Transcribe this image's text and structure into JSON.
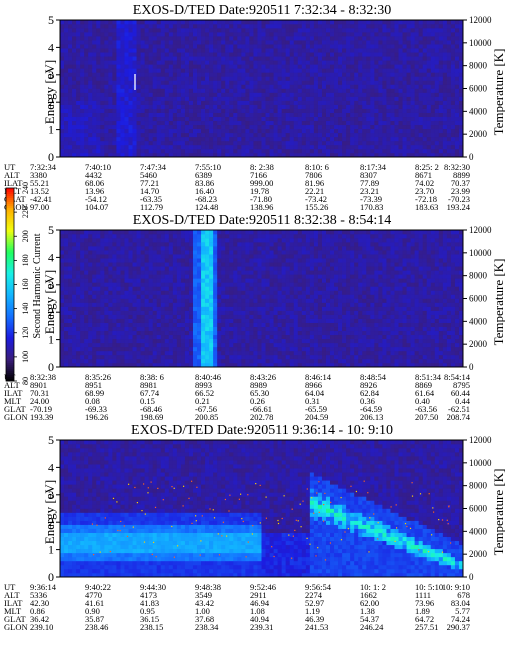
{
  "panels": [
    {
      "title": "EXOS-D/TED   Date:920511  7:32:34 - 8:32:30",
      "ylabel_left": "Energy [eV]",
      "ylabel_right": "Temperature [K]",
      "pattern": "quiet",
      "info_labels": [
        "UT",
        "ALT",
        "ILAT",
        "MLT",
        "GLAT",
        "GLON"
      ],
      "info_columns": [
        [
          "7:32:34",
          "3380",
          "55.21",
          "13.52",
          "-42.41",
          "97.00"
        ],
        [
          "7:40:10",
          "4432",
          "68.06",
          "13.96",
          "-54.12",
          "104.07"
        ],
        [
          "7:47:34",
          "5460",
          "77.21",
          "14.70",
          "-63.35",
          "112.79"
        ],
        [
          "7:55:10",
          "6389",
          "83.86",
          "16.40",
          "-68.23",
          "124.48"
        ],
        [
          "8: 2:38",
          "7166",
          "999.00",
          "19.78",
          "-71.80",
          "138.96"
        ],
        [
          "8:10: 6",
          "7806",
          "81.96",
          "22.21",
          "-73.42",
          "155.26"
        ],
        [
          "8:17:34",
          "8307",
          "77.89",
          "23.21",
          "-73.39",
          "170.83"
        ],
        [
          "8:25: 2",
          "8671",
          "74.02",
          "23.70",
          "-72.18",
          "183.63"
        ],
        [
          "8:32:30",
          "8899",
          "70.37",
          "23.99",
          "-70.23",
          "193.24"
        ]
      ]
    },
    {
      "title": "EXOS-D/TED   Date:920511  8:32:38 - 8:54:14",
      "ylabel_left": "Energy [eV]",
      "ylabel_right": "Temperature [K]",
      "pattern": "spike",
      "info_labels": [
        "UT",
        "ALT",
        "ILAT",
        "MLT",
        "GLAT",
        "GLON"
      ],
      "info_columns": [
        [
          "8:32:38",
          "8901",
          "70.31",
          "24.00",
          "-70.19",
          "193.39"
        ],
        [
          "8:35:26",
          "8951",
          "68.99",
          "0.08",
          "-69.33",
          "196.26"
        ],
        [
          "8:38: 6",
          "8981",
          "67.74",
          "0.15",
          "-68.46",
          "198.69"
        ],
        [
          "8:40:46",
          "8993",
          "66.52",
          "0.21",
          "-67.56",
          "200.85"
        ],
        [
          "8:43:26",
          "8989",
          "65.30",
          "0.26",
          "-66.61",
          "202.78"
        ],
        [
          "8:46:14",
          "8966",
          "64.04",
          "0.31",
          "-65.59",
          "204.59"
        ],
        [
          "8:48:54",
          "8926",
          "62.84",
          "0.36",
          "-64.59",
          "206.13"
        ],
        [
          "8:51:34",
          "8869",
          "61.64",
          "0.40",
          "-63.56",
          "207.50"
        ],
        [
          "8:54:14",
          "8795",
          "60.44",
          "0.44",
          "-62.51",
          "208.74"
        ]
      ]
    },
    {
      "title": "EXOS-D/TED   Date:920511  9:36:14 - 10: 9:10",
      "ylabel_left": "Energy [eV]",
      "ylabel_right": "Temperature [K]",
      "pattern": "active",
      "info_labels": [
        "UT",
        "ALT",
        "ILAT",
        "MLT",
        "GLAT",
        "GLON"
      ],
      "info_columns": [
        [
          "9:36:14",
          "5336",
          "42.30",
          "0.86",
          "36.42",
          "239.10"
        ],
        [
          "9:40:22",
          "4770",
          "41.61",
          "0.90",
          "35.87",
          "238.46"
        ],
        [
          "9:44:30",
          "4173",
          "41.83",
          "0.95",
          "36.15",
          "238.15"
        ],
        [
          "9:48:38",
          "3549",
          "43.42",
          "1.00",
          "37.68",
          "238.34"
        ],
        [
          "9:52:46",
          "2911",
          "46.94",
          "1.08",
          "40.94",
          "239.31"
        ],
        [
          "9:56:54",
          "2274",
          "52.97",
          "1.19",
          "46.39",
          "241.53"
        ],
        [
          "10: 1: 2",
          "1662",
          "62.00",
          "1.38",
          "54.37",
          "246.24"
        ],
        [
          "10: 5:10",
          "1111",
          "73.96",
          "1.89",
          "64.72",
          "257.51"
        ],
        [
          "10: 9:10",
          "678",
          "83.04",
          "5.77",
          "74.24",
          "290.37"
        ]
      ]
    }
  ],
  "colorbar": {
    "label": "Second Harmonic Current",
    "ticks": [
      "80",
      "100",
      "120",
      "140",
      "160",
      "180",
      "200",
      "220",
      "240"
    ]
  },
  "chart_data": {
    "type": "heatmap",
    "y_left": {
      "label": "Energy [eV]",
      "range": [
        0,
        5
      ],
      "ticks": [
        "0",
        "1",
        "2",
        "3",
        "4",
        "5"
      ]
    },
    "y_right": {
      "label": "Temperature [K]",
      "range": [
        0,
        12000
      ],
      "ticks": [
        "0",
        "2000",
        "4000",
        "6000",
        "8000",
        "10000",
        "12000"
      ]
    },
    "color_scale": {
      "range": [
        80,
        240
      ],
      "colors": [
        "#000000",
        "#3a1d7a",
        "#1c1ce0",
        "#1470ff",
        "#12b4ff",
        "#19f0e6",
        "#20ff60",
        "#f0ff10",
        "#ffb000",
        "#ff0000"
      ]
    },
    "background_value": 105
  }
}
